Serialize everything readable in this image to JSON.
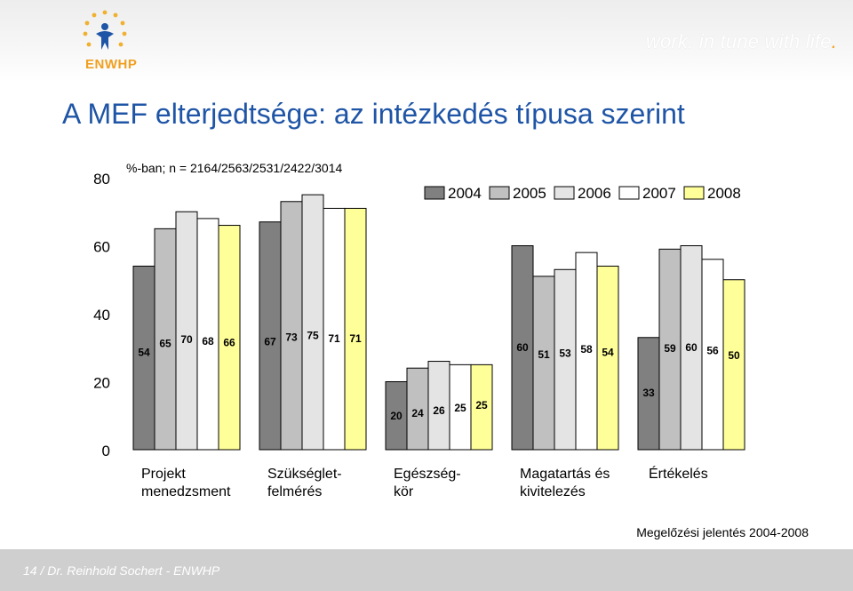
{
  "header": {
    "tagline": "work. in tune with life",
    "tagline_dot": ".",
    "logo_text": "ENWHP"
  },
  "title": "A MEF elterjedtsége: az intézkedés típusa szerint",
  "note": "%-ban; n = 2164/2563/2531/2422/3014",
  "source": "Megelőzési jelentés 2004-2008",
  "footer": "14 / Dr. Reinhold Sochert - ENWHP",
  "chart_data": {
    "type": "bar",
    "categories": [
      "Projekt\nmenedzsment",
      "Szükséglet-\nfelmérés",
      "Egészség-\nkör",
      "Magatartás és\nkivitelezés",
      "Értékelés"
    ],
    "series": [
      {
        "name": "2004",
        "values": [
          54,
          67,
          20,
          60,
          33
        ],
        "color": "#808080"
      },
      {
        "name": "2005",
        "values": [
          65,
          73,
          24,
          51,
          59
        ],
        "color": "#c0c0c0"
      },
      {
        "name": "2006",
        "values": [
          70,
          75,
          26,
          53,
          60
        ],
        "color": "#e4e4e4"
      },
      {
        "name": "2007",
        "values": [
          68,
          71,
          25,
          58,
          56
        ],
        "color": "#ffffff"
      },
      {
        "name": "2008",
        "values": [
          66,
          71,
          25,
          54,
          50
        ],
        "color": "#ffff99"
      }
    ],
    "ylim": [
      0,
      80
    ],
    "yticks": [
      0,
      20,
      40,
      60,
      80
    ],
    "legend": "top-right",
    "grid": false
  }
}
